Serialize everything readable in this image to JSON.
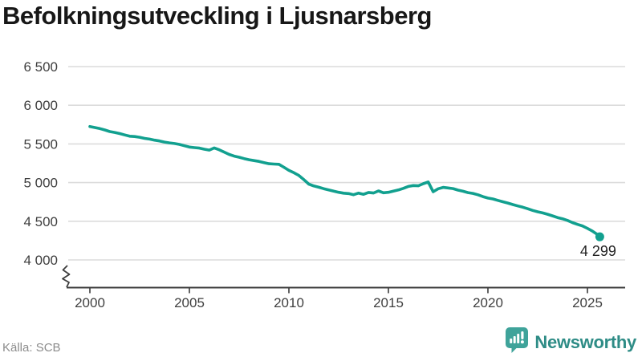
{
  "title": "Befolkningsutveckling i Ljusnarsberg",
  "footer": {
    "source": "Källa: SCB",
    "brand": "Newsworthy"
  },
  "colors": {
    "line": "#12a08f",
    "grid": "#dcdcdc",
    "axis": "#3c3c3c",
    "title": "#171717",
    "tick_text": "#3f3f3f",
    "end_label": "#222222",
    "source_text": "#8c8c8c",
    "brand": "#2e8c86",
    "brand_icon": "#3fa39a"
  },
  "chart_data": {
    "type": "line",
    "title": "Befolkningsutveckling i Ljusnarsberg",
    "xlabel": "",
    "ylabel": "",
    "grid": true,
    "axis_break": true,
    "x_ticks": [
      2000,
      2005,
      2010,
      2015,
      2020,
      2025
    ],
    "x_tick_labels": [
      "2000",
      "2005",
      "2010",
      "2015",
      "2020",
      "2025"
    ],
    "y_ticks": [
      4000,
      4500,
      5000,
      5500,
      6000,
      6500
    ],
    "y_tick_labels": [
      "4 000",
      "4 500",
      "5 000",
      "5 500",
      "6 000",
      "6 500"
    ],
    "ylim": [
      4000,
      6500
    ],
    "xlim": [
      1998.8,
      2026.9
    ],
    "end_label": "4 299",
    "last_value": 4299,
    "series": [
      {
        "name": "Befolkning",
        "x": [
          2000,
          2000.25,
          2000.5,
          2000.75,
          2001,
          2001.25,
          2001.5,
          2001.75,
          2002,
          2002.25,
          2002.5,
          2002.75,
          2003,
          2003.25,
          2003.5,
          2003.75,
          2004,
          2004.25,
          2004.5,
          2004.75,
          2005,
          2005.25,
          2005.5,
          2005.75,
          2006,
          2006.25,
          2006.5,
          2006.75,
          2007,
          2007.25,
          2007.5,
          2007.75,
          2008,
          2008.25,
          2008.5,
          2008.75,
          2009,
          2009.25,
          2009.5,
          2009.75,
          2010,
          2010.25,
          2010.5,
          2010.75,
          2011,
          2011.25,
          2011.5,
          2011.75,
          2012,
          2012.25,
          2012.5,
          2012.75,
          2013,
          2013.25,
          2013.5,
          2013.75,
          2014,
          2014.25,
          2014.5,
          2014.75,
          2015,
          2015.25,
          2015.5,
          2015.75,
          2016,
          2016.25,
          2016.5,
          2016.75,
          2017,
          2017.25,
          2017.5,
          2017.75,
          2018,
          2018.25,
          2018.5,
          2018.75,
          2019,
          2019.25,
          2019.5,
          2019.75,
          2020,
          2020.25,
          2020.5,
          2020.75,
          2021,
          2021.25,
          2021.5,
          2021.75,
          2022,
          2022.25,
          2022.5,
          2022.75,
          2023,
          2023.25,
          2023.5,
          2023.75,
          2024,
          2024.25,
          2024.5,
          2024.75,
          2025,
          2025.25,
          2025.5,
          2025.62
        ],
        "values": [
          5725,
          5712,
          5698,
          5680,
          5660,
          5648,
          5634,
          5616,
          5600,
          5595,
          5586,
          5572,
          5562,
          5549,
          5538,
          5524,
          5514,
          5505,
          5494,
          5476,
          5460,
          5452,
          5446,
          5432,
          5420,
          5448,
          5424,
          5394,
          5364,
          5342,
          5328,
          5310,
          5296,
          5284,
          5274,
          5258,
          5244,
          5240,
          5236,
          5198,
          5158,
          5128,
          5092,
          5038,
          4980,
          4956,
          4940,
          4921,
          4906,
          4889,
          4874,
          4863,
          4858,
          4843,
          4864,
          4849,
          4872,
          4865,
          4892,
          4868,
          4875,
          4890,
          4905,
          4925,
          4950,
          4962,
          4958,
          4985,
          5008,
          4882,
          4920,
          4938,
          4930,
          4922,
          4902,
          4888,
          4870,
          4860,
          4842,
          4818,
          4800,
          4788,
          4770,
          4752,
          4735,
          4716,
          4698,
          4682,
          4662,
          4640,
          4622,
          4608,
          4590,
          4570,
          4548,
          4532,
          4510,
          4482,
          4460,
          4440,
          4408,
          4372,
          4330,
          4299
        ]
      }
    ]
  }
}
